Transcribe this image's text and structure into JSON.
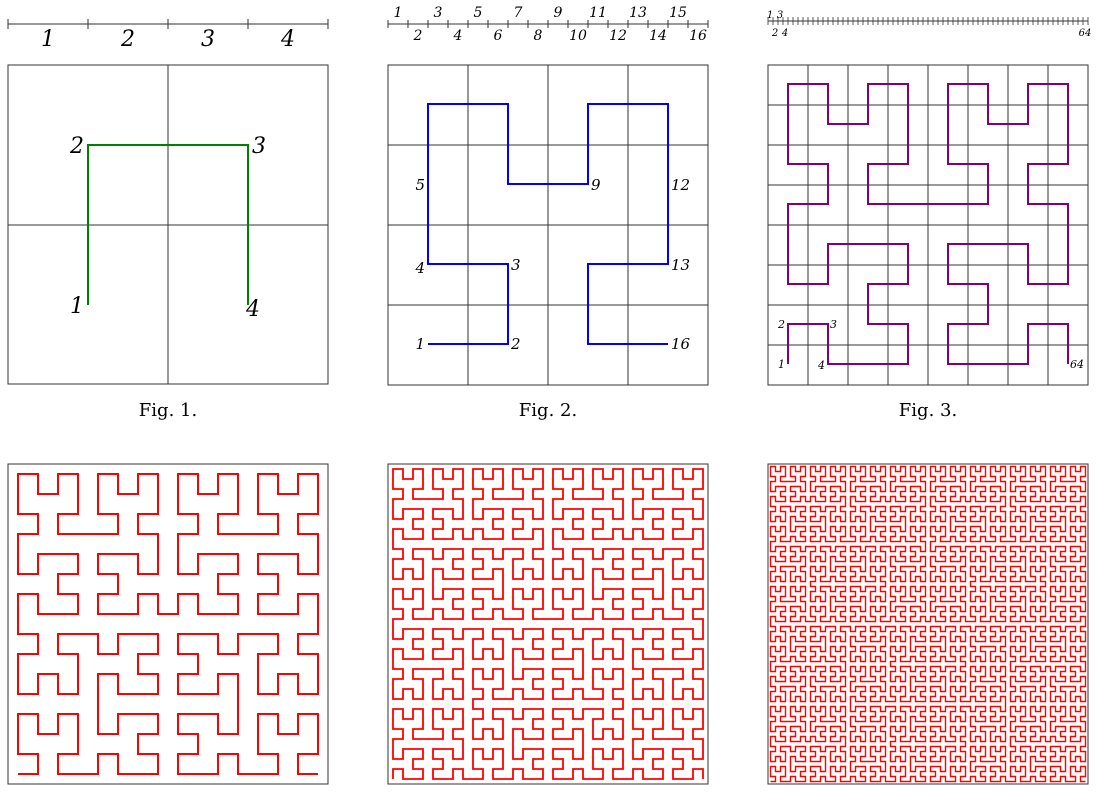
{
  "figures": [
    {
      "order": 1,
      "caption": "Fig. 1.",
      "curve_color": "#008000",
      "show_grid": true,
      "show_ruler": true,
      "labels": [
        "1",
        "2",
        "3",
        "4"
      ]
    },
    {
      "order": 2,
      "caption": "Fig. 2.",
      "curve_color": "#0000ff",
      "show_grid": true,
      "show_ruler": true,
      "labels": [
        "1",
        "2",
        "3",
        "4",
        "5",
        "6",
        "7",
        "8",
        "9",
        "10",
        "11",
        "12",
        "13",
        "14",
        "15",
        "16"
      ],
      "vertex_labels": [
        "1",
        "2",
        "3",
        "4",
        "5",
        "9",
        "12",
        "13",
        "16"
      ]
    },
    {
      "order": 3,
      "caption": "Fig. 3.",
      "curve_color": "#800080",
      "show_grid": true,
      "show_ruler": true,
      "ruler_labels": [
        "1",
        "2",
        "3",
        "4",
        "64"
      ],
      "vertex_labels": [
        "1",
        "2",
        "3",
        "4",
        "64"
      ]
    },
    {
      "order": 4,
      "caption": "",
      "curve_color": "#ff0000",
      "show_grid": false,
      "show_ruler": false
    },
    {
      "order": 5,
      "caption": "",
      "curve_color": "#ff0000",
      "show_grid": false,
      "show_ruler": false
    },
    {
      "order": 6,
      "caption": "",
      "curve_color": "#ff0000",
      "show_grid": false,
      "show_ruler": false
    }
  ]
}
